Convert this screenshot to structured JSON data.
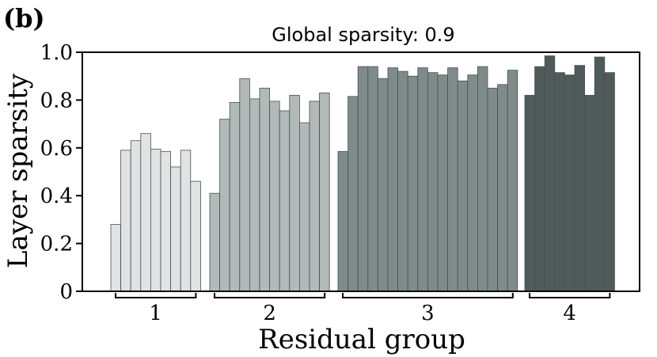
{
  "panel_label": "(b)",
  "chart_data": {
    "type": "bar",
    "title": "Global sparsity: 0.9",
    "xlabel": "Residual group",
    "ylabel": "Layer sparsity",
    "ylim": [
      0,
      1.0
    ],
    "yticks": [
      0,
      0.2,
      0.4,
      0.6,
      0.8,
      1.0
    ],
    "ytick_labels": [
      "0",
      "0.2",
      "0.4",
      "0.6",
      "0.8",
      "1.0"
    ],
    "grid": false,
    "groups": [
      {
        "label": "1",
        "color": "#dfe3e3",
        "values": [
          0.28,
          0.59,
          0.63,
          0.66,
          0.595,
          0.585,
          0.52,
          0.59,
          0.46
        ]
      },
      {
        "label": "2",
        "color": "#b1bab8",
        "values": [
          0.41,
          0.72,
          0.79,
          0.89,
          0.805,
          0.85,
          0.795,
          0.755,
          0.82,
          0.705,
          0.795,
          0.83
        ]
      },
      {
        "label": "3",
        "color": "#7f8b8a",
        "values": [
          0.585,
          0.815,
          0.94,
          0.94,
          0.89,
          0.935,
          0.92,
          0.9,
          0.935,
          0.915,
          0.905,
          0.935,
          0.88,
          0.905,
          0.94,
          0.85,
          0.865,
          0.925
        ]
      },
      {
        "label": "4",
        "color": "#4f5a5b",
        "values": [
          0.82,
          0.94,
          0.985,
          0.915,
          0.905,
          0.945,
          0.82,
          0.98,
          0.915
        ]
      }
    ]
  }
}
